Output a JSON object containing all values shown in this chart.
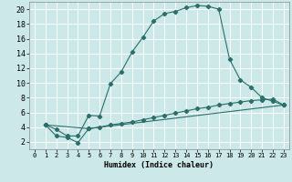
{
  "xlabel": "Humidex (Indice chaleur)",
  "bg_color": "#cce8e8",
  "grid_color": "#ffffff",
  "line_color": "#2a6f6a",
  "xlim": [
    -0.5,
    23.5
  ],
  "ylim": [
    1,
    21
  ],
  "xticks": [
    0,
    1,
    2,
    3,
    4,
    5,
    6,
    7,
    8,
    9,
    10,
    11,
    12,
    13,
    14,
    15,
    16,
    17,
    18,
    19,
    20,
    21,
    22,
    23
  ],
  "yticks": [
    2,
    4,
    6,
    8,
    10,
    12,
    14,
    16,
    18,
    20
  ],
  "line1_x": [
    1,
    2,
    3,
    4,
    5,
    6,
    7,
    8,
    9,
    10,
    11,
    12,
    13,
    14,
    15,
    16,
    17,
    18,
    19,
    20,
    21,
    22,
    23
  ],
  "line1_y": [
    4.3,
    3.7,
    2.8,
    2.8,
    5.6,
    5.5,
    9.9,
    11.5,
    14.2,
    16.2,
    18.4,
    19.4,
    19.7,
    20.2,
    20.5,
    20.4,
    20.0,
    13.2,
    10.4,
    9.4,
    8.0,
    7.5,
    7.0
  ],
  "line2_x": [
    1,
    5,
    6,
    7,
    8,
    9,
    10,
    11,
    12,
    13,
    14,
    15,
    16,
    17,
    18,
    19,
    20,
    21,
    22,
    23
  ],
  "line2_y": [
    4.3,
    3.8,
    4.0,
    4.3,
    4.5,
    4.7,
    5.0,
    5.3,
    5.6,
    5.9,
    6.2,
    6.5,
    6.7,
    7.0,
    7.2,
    7.4,
    7.6,
    7.7,
    7.8,
    7.0
  ],
  "line3_x": [
    1,
    2,
    3,
    4,
    5,
    23
  ],
  "line3_y": [
    4.3,
    2.8,
    2.6,
    1.9,
    3.8,
    7.0
  ]
}
